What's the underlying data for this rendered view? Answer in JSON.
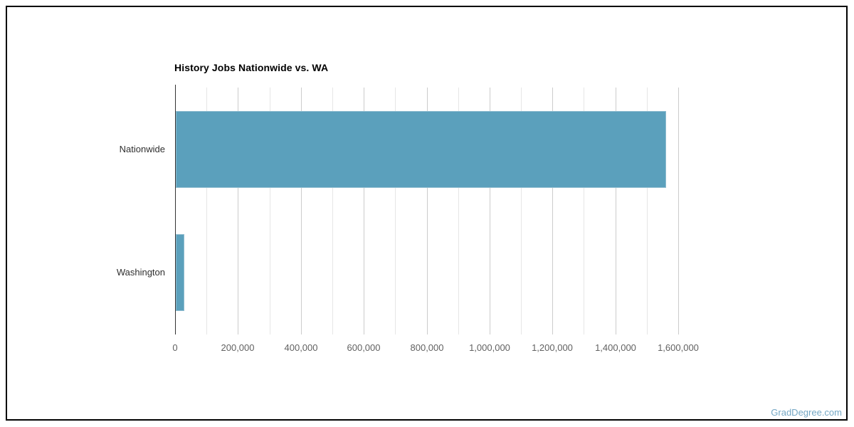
{
  "watermark": {
    "text": "GradDegree.com",
    "color": "#74a7c4"
  },
  "frame": {
    "border_color": "#000000",
    "background": "#ffffff"
  },
  "chart_data": {
    "type": "bar",
    "orientation": "horizontal",
    "title": "History Jobs Nationwide vs. WA",
    "categories": [
      "Nationwide",
      "Washington"
    ],
    "values": [
      1560000,
      27000
    ],
    "xlim": [
      0,
      1600000
    ],
    "x_tick_step": 200000,
    "gridline_step": 100000,
    "x_tick_labels": [
      "0",
      "200,000",
      "400,000",
      "600,000",
      "800,000",
      "1,000,000",
      "1,200,000",
      "1,400,000",
      "1,600,000"
    ],
    "bar_color": "#5ba0bc",
    "bar_edge_color": "#8fbccf",
    "axis_color": "#333333",
    "major_gridline_color": "#cccccc",
    "minor_gridline_color": "#e6e6e6",
    "tick_label_color": "#616161",
    "category_label_color": "#2f2f2f",
    "title_color": "#000000",
    "legend": "none",
    "grid": "vertical"
  }
}
